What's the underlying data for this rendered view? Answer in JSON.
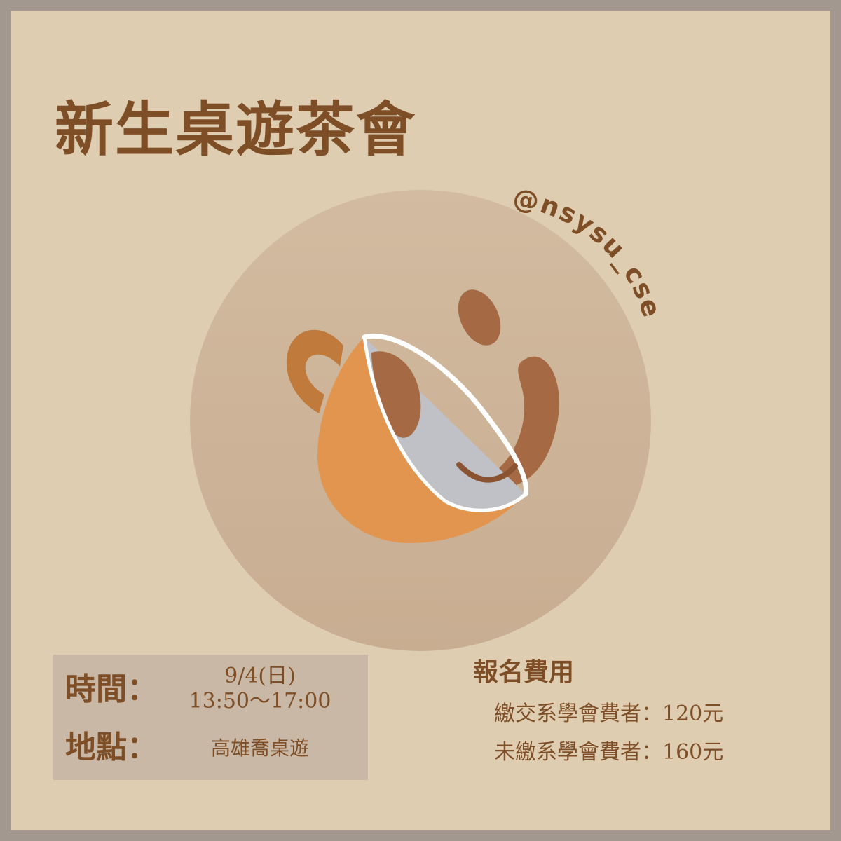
{
  "poster": {
    "title": "新生桌遊茶會",
    "handle": "@nsysu_cse"
  },
  "info": {
    "time_label": "時間：",
    "date": "9/4(日)",
    "time": "13:50～17:00",
    "place_label": "地點：",
    "place": "高雄喬桌遊"
  },
  "fees": {
    "title": "報名費用",
    "paid_line": "繳交系學會費者：120元",
    "unpaid_line": "未繳系學會費者：160元"
  },
  "colors": {
    "background": "#dfcdb2",
    "frame": "#a29890",
    "text_brown": "#7e4e26",
    "circle": "#cdb498",
    "info_box": "#c9b8a6",
    "cup_orange": "#e2954f",
    "cup_handle": "#c07a3c",
    "coffee": "#a56944",
    "cup_inner": "#bfc1c6"
  },
  "icons": [
    "tilted-coffee-cup-icon",
    "coffee-splash-icon"
  ]
}
